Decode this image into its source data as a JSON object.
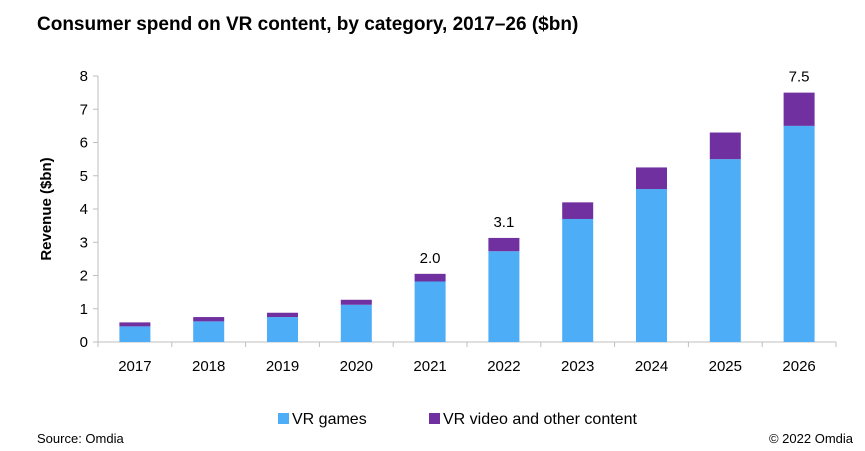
{
  "title": "Consumer spend on VR content, by category, 2017–26 ($bn)",
  "source": "Source: Omdia",
  "copyright": "© 2022 Omdia",
  "colors": {
    "games": "#4DADF7",
    "video": "#7030A0",
    "axis": "#bfbfbf"
  },
  "chart_data": {
    "type": "bar",
    "stacked": true,
    "title": "Consumer spend on VR content, by category, 2017–26 ($bn)",
    "xlabel": "",
    "ylabel": "Revenue ($bn)",
    "ylim": [
      0,
      8
    ],
    "yticks": [
      "0",
      "1",
      "2",
      "3",
      "4",
      "5",
      "6",
      "7",
      "8"
    ],
    "categories": [
      "2017",
      "2018",
      "2019",
      "2020",
      "2021",
      "2022",
      "2023",
      "2024",
      "2025",
      "2026"
    ],
    "series": [
      {
        "name": "VR games",
        "values": [
          0.47,
          0.62,
          0.75,
          1.12,
          1.82,
          2.73,
          3.7,
          4.6,
          5.5,
          6.5
        ]
      },
      {
        "name": "VR video and other content",
        "values": [
          0.12,
          0.13,
          0.13,
          0.15,
          0.23,
          0.4,
          0.5,
          0.65,
          0.8,
          1.0
        ]
      }
    ],
    "data_labels": [
      {
        "category": "2021",
        "text": "2.0"
      },
      {
        "category": "2022",
        "text": "3.1"
      },
      {
        "category": "2026",
        "text": "7.5"
      }
    ],
    "legend": [
      "VR games",
      "VR video and other content"
    ],
    "legend_position": "bottom"
  }
}
